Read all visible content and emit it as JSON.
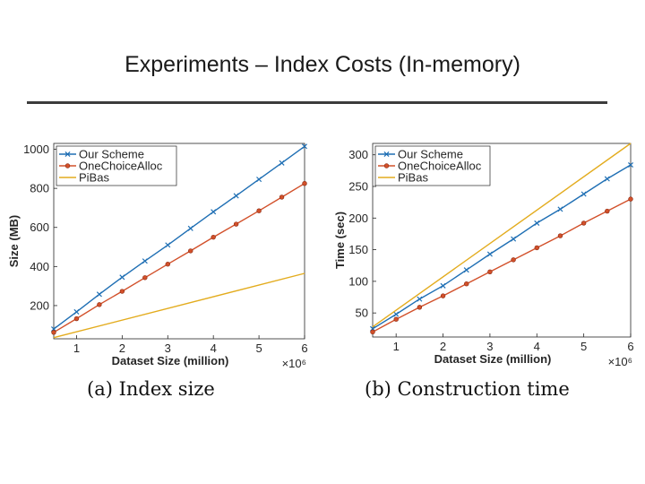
{
  "slide": {
    "title": "Experiments – Index Costs (In-memory)"
  },
  "captions": {
    "a": "(a) Index size",
    "b": "(b) Construction time"
  },
  "chart_data": [
    {
      "type": "line",
      "xlabel": "Dataset Size (million)",
      "ylabel": "Size (MB)",
      "x_multiplier": "×10⁶",
      "xlim": [
        0.5,
        6
      ],
      "ylim": [
        30,
        1030
      ],
      "xticks": [
        1,
        2,
        3,
        4,
        5,
        6
      ],
      "yticks": [
        200,
        400,
        600,
        800,
        1000
      ],
      "grid": false,
      "legend": "top-left",
      "series": [
        {
          "name": "Our Scheme",
          "color": "#1f6fb4",
          "marker": "x",
          "x": [
            0.5,
            1,
            1.5,
            2,
            2.5,
            3,
            3.5,
            4,
            4.5,
            5,
            5.5,
            6
          ],
          "y": [
            80,
            168,
            258,
            345,
            428,
            510,
            595,
            680,
            762,
            846,
            930,
            1015
          ]
        },
        {
          "name": "OneChoiceAlloc",
          "color": "#d2502a",
          "marker": "circle",
          "x": [
            0.5,
            1,
            1.5,
            2,
            2.5,
            3,
            3.5,
            4,
            4.5,
            5,
            5.5,
            6
          ],
          "y": [
            63,
            133,
            205,
            273,
            343,
            412,
            480,
            550,
            617,
            685,
            755,
            825
          ]
        },
        {
          "name": "PiBas",
          "color": "#e3ac1e",
          "marker": "none",
          "x": [
            0.5,
            6
          ],
          "y": [
            36,
            365
          ]
        }
      ]
    },
    {
      "type": "line",
      "xlabel": "Dataset Size (million)",
      "ylabel": "Time (sec)",
      "x_multiplier": "×10⁶",
      "xlim": [
        0.5,
        6
      ],
      "ylim": [
        12,
        318
      ],
      "xticks": [
        1,
        2,
        3,
        4,
        5,
        6
      ],
      "yticks": [
        50,
        100,
        150,
        200,
        250,
        300
      ],
      "grid": false,
      "legend": "top-left",
      "series": [
        {
          "name": "Our Scheme",
          "color": "#1f6fb4",
          "marker": "x",
          "x": [
            0.5,
            1,
            1.5,
            2,
            2.5,
            3,
            3.5,
            4,
            4.5,
            5,
            5.5,
            6
          ],
          "y": [
            25,
            48,
            72,
            93,
            118,
            143,
            167,
            192,
            214,
            238,
            262,
            284
          ]
        },
        {
          "name": "OneChoiceAlloc",
          "color": "#d2502a",
          "marker": "circle",
          "x": [
            0.5,
            1,
            1.5,
            2,
            2.5,
            3,
            3.5,
            4,
            4.5,
            5,
            5.5,
            6
          ],
          "y": [
            20,
            40,
            59,
            77,
            96,
            115,
            134,
            153,
            172,
            192,
            211,
            230
          ]
        },
        {
          "name": "PiBas",
          "color": "#e3ac1e",
          "marker": "none",
          "x": [
            0.5,
            6
          ],
          "y": [
            28,
            318
          ]
        }
      ]
    }
  ]
}
